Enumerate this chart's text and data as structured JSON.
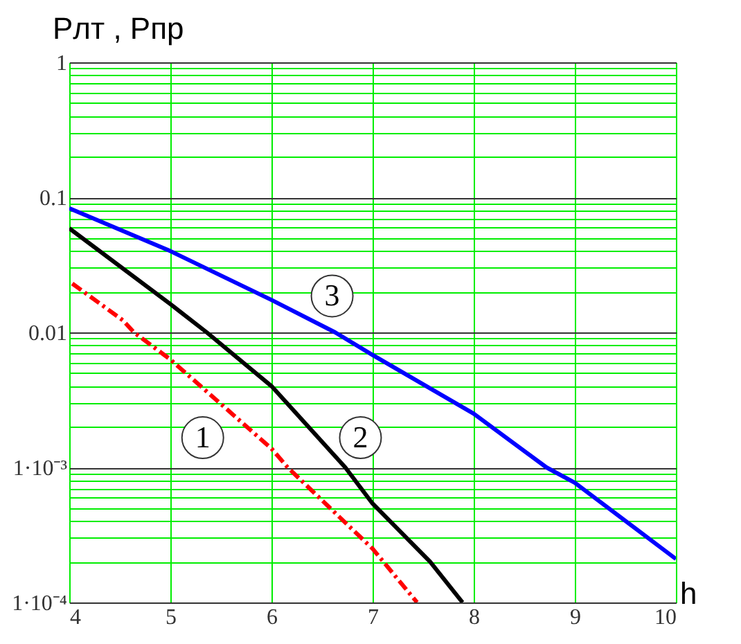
{
  "chart_data": {
    "type": "line",
    "xlabel": "h",
    "ylabel": "Pлт , Pпр",
    "log": "y",
    "grid": true,
    "xlim": [
      4,
      10
    ],
    "xticks": [
      4,
      5,
      6,
      7,
      8,
      9,
      10
    ],
    "ylim": [
      0.0001,
      1
    ],
    "yticks": [
      {
        "value": 0.0001,
        "label": "1·10⁻⁴"
      },
      {
        "value": 0.0002,
        "label": null
      },
      {
        "value": 0.0003,
        "label": null
      },
      {
        "value": 0.0004,
        "label": null
      },
      {
        "value": 0.0005,
        "label": null
      },
      {
        "value": 0.0006,
        "label": null
      },
      {
        "value": 0.0007,
        "label": null
      },
      {
        "value": 0.0008,
        "label": null
      },
      {
        "value": 0.0009,
        "label": null
      },
      {
        "value": 0.001,
        "label": "1·10⁻³"
      },
      {
        "value": 0.002,
        "label": null
      },
      {
        "value": 0.003,
        "label": null
      },
      {
        "value": 0.004,
        "label": null
      },
      {
        "value": 0.005,
        "label": null
      },
      {
        "value": 0.006,
        "label": null
      },
      {
        "value": 0.007,
        "label": null
      },
      {
        "value": 0.008,
        "label": null
      },
      {
        "value": 0.009,
        "label": null
      },
      0.01,
      {
        "value": 0.02,
        "label": null
      },
      {
        "value": 0.03,
        "label": null
      },
      {
        "value": 0.04,
        "label": null
      },
      {
        "value": 0.05,
        "label": null
      },
      {
        "value": 0.06,
        "label": null
      },
      {
        "value": 0.07,
        "label": null
      },
      {
        "value": 0.08,
        "label": null
      },
      {
        "value": 0.09,
        "label": null
      },
      0.1,
      {
        "value": 0.2,
        "label": null
      },
      {
        "value": 0.3,
        "label": null
      },
      {
        "value": 0.4,
        "label": null
      },
      {
        "value": 0.5,
        "label": null
      },
      {
        "value": 0.6,
        "label": null
      },
      {
        "value": 0.7,
        "label": null
      },
      {
        "value": 0.8,
        "label": null
      },
      {
        "value": 0.9,
        "label": null
      },
      1
    ],
    "series": [
      {
        "color": "#ff0000",
        "line_style": "dashed",
        "x": [
          4.03,
          4.53,
          4.64,
          5,
          6,
          6.16,
          7,
          7.44
        ],
        "values": [
          0.023,
          0.0123,
          0.01,
          0.0063,
          0.00138,
          0.001,
          0.00025,
          0.0001
        ]
      },
      {
        "color": "#000000",
        "line_style": "solid",
        "x": [
          4,
          5,
          5.36,
          6,
          6.73,
          7,
          7.57,
          7.89
        ],
        "values": [
          0.059,
          0.0162,
          0.01,
          0.004,
          0.001,
          0.00054,
          0.0002,
          0.0001
        ]
      },
      {
        "color": "#0000ff",
        "line_style": "solid",
        "x": [
          4,
          5,
          6,
          6.63,
          7,
          8,
          8.72,
          9,
          10
        ],
        "values": [
          0.083,
          0.04,
          0.0174,
          0.01,
          0.0068,
          0.0025,
          0.001,
          0.00077,
          0.00021
        ]
      }
    ],
    "annotations": [
      {
        "text": "1",
        "x": 5.32,
        "y": 0.00166
      },
      {
        "text": "2",
        "x": 6.88,
        "y": 0.00166
      },
      {
        "text": "3",
        "x": 6.6,
        "y": 0.0186
      }
    ]
  }
}
